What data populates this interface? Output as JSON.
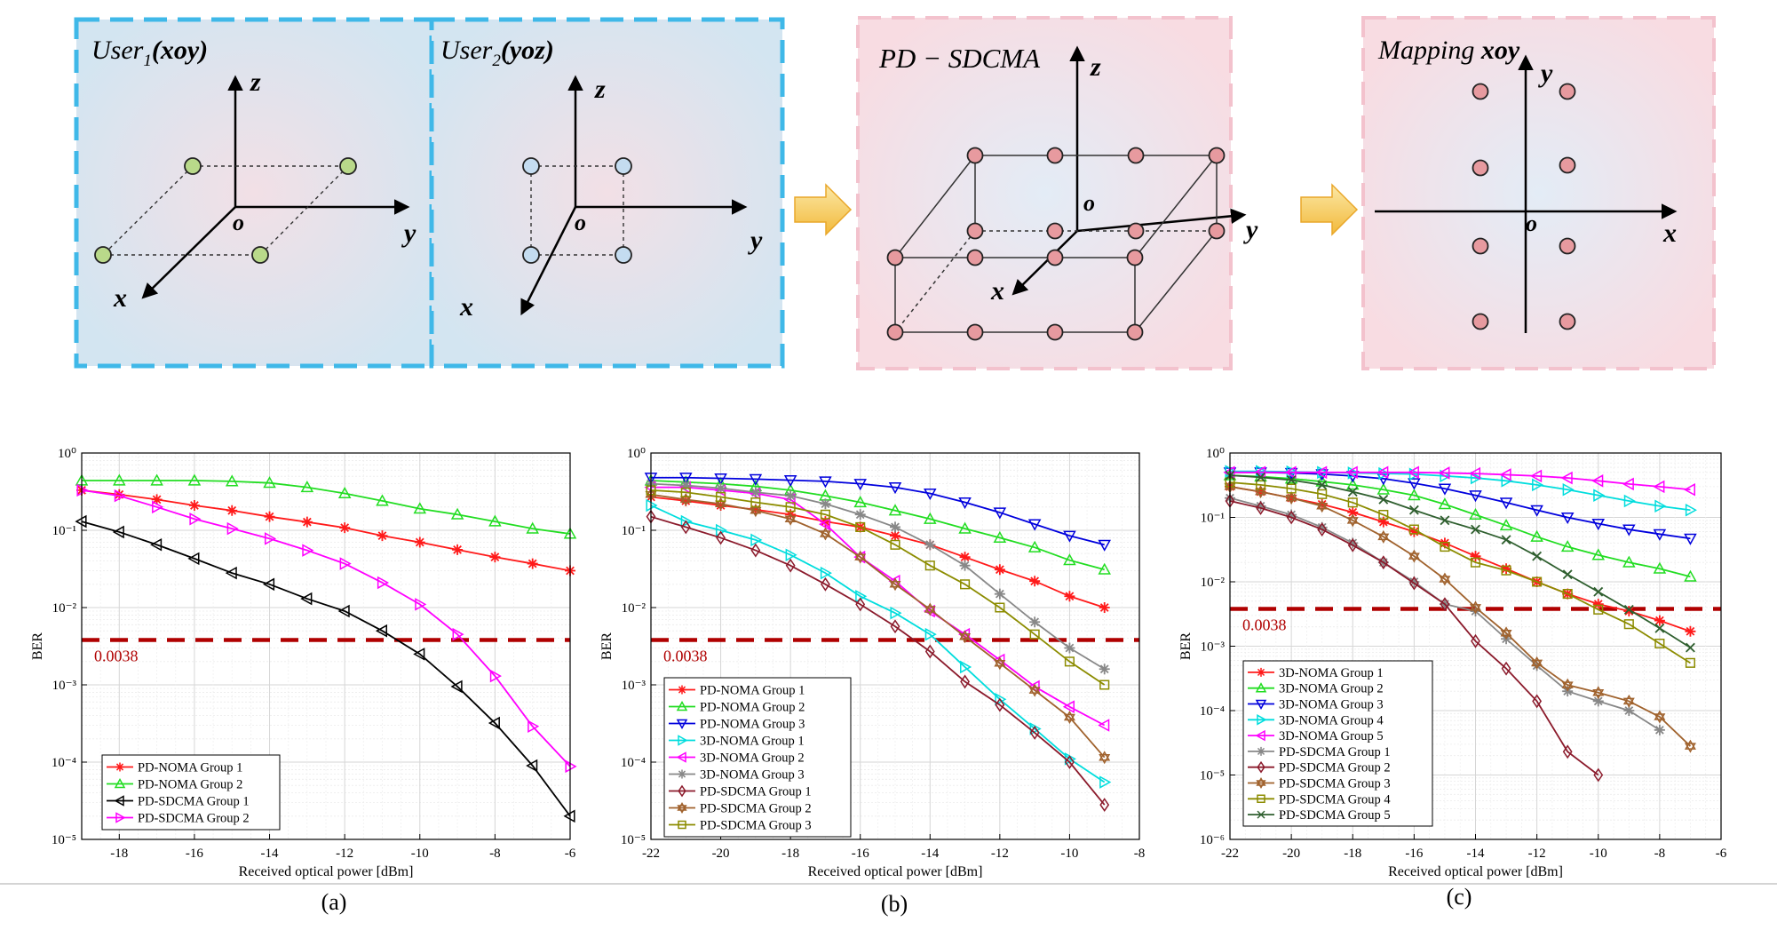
{
  "diagram": {
    "user1_label": "User",
    "user1_sub": "1",
    "user1_plane": "(xoy)",
    "user2_label": "User",
    "user2_sub": "2",
    "user2_plane": "(yoz)",
    "pdsdcma_label": "PD − SDCMA",
    "mapping_label": "Mapping ",
    "mapping_plane": "xoy",
    "axis_x": "x",
    "axis_y": "y",
    "axis_z": "z",
    "origin": "o",
    "colors": {
      "user_panel": "#d6e6f2",
      "user_border": "#3fb8e8",
      "pink_panel": "#f7dde3",
      "pink_border": "#f3c2cd",
      "green_point": "#b9d98a",
      "blue_point": "#c4dcf0",
      "red_point": "#e79a9f",
      "arrow": "#f4c55a"
    }
  },
  "captions": [
    "(a)",
    "(b)",
    "(c)"
  ],
  "chart_data": [
    {
      "type": "line",
      "panel": "(a)",
      "xlabel": "Received optical power [dBm]",
      "ylabel": "BER",
      "xlim": [
        -19,
        -6
      ],
      "ylim_exp": [
        -5,
        0
      ],
      "log_y": true,
      "grid": true,
      "xticks": [
        -18,
        -16,
        -14,
        -12,
        -10,
        -8,
        -6
      ],
      "threshold": {
        "value": 0.0038,
        "label": "0.0038",
        "color": "#b00000"
      },
      "legend_position": "bottom-left",
      "series": [
        {
          "name": "PD-NOMA Group 1",
          "color": "#ff1a1a",
          "marker": "star",
          "x": [
            -19,
            -18,
            -17,
            -16,
            -15,
            -14,
            -13,
            -12,
            -11,
            -10,
            -9,
            -8,
            -7,
            -6
          ],
          "y": [
            0.33,
            0.29,
            0.25,
            0.21,
            0.18,
            0.15,
            0.128,
            0.108,
            0.085,
            0.07,
            0.056,
            0.045,
            0.037,
            0.03
          ]
        },
        {
          "name": "PD-NOMA Group 2",
          "color": "#22dd22",
          "marker": "tri-up",
          "x": [
            -19,
            -18,
            -17,
            -16,
            -15,
            -14,
            -13,
            -12,
            -11,
            -10,
            -9,
            -8,
            -7,
            -6
          ],
          "y": [
            0.44,
            0.44,
            0.44,
            0.44,
            0.43,
            0.41,
            0.36,
            0.3,
            0.24,
            0.19,
            0.16,
            0.13,
            0.105,
            0.09
          ]
        },
        {
          "name": "PD-SDCMA Group 1",
          "color": "#000000",
          "marker": "tri-left",
          "x": [
            -19,
            -18,
            -17,
            -16,
            -15,
            -14,
            -13,
            -12,
            -11,
            -10,
            -9,
            -8,
            -7,
            -6
          ],
          "y": [
            0.13,
            0.095,
            0.065,
            0.043,
            0.028,
            0.02,
            0.013,
            0.009,
            0.005,
            0.0025,
            0.00095,
            0.00032,
            9e-05,
            2e-05
          ]
        },
        {
          "name": "PD-SDCMA Group 2",
          "color": "#ff00ff",
          "marker": "tri-right",
          "x": [
            -19,
            -18,
            -17,
            -16,
            -15,
            -14,
            -13,
            -12,
            -11,
            -10,
            -9,
            -8,
            -7,
            -6
          ],
          "y": [
            0.33,
            0.28,
            0.2,
            0.14,
            0.105,
            0.078,
            0.055,
            0.037,
            0.021,
            0.011,
            0.0045,
            0.0013,
            0.00029,
            8.8e-05
          ]
        }
      ]
    },
    {
      "type": "line",
      "panel": "(b)",
      "xlabel": "Received optical power [dBm]",
      "ylabel": "BER",
      "xlim": [
        -22,
        -8
      ],
      "ylim_exp": [
        -5,
        0
      ],
      "log_y": true,
      "grid": true,
      "xticks": [
        -22,
        -20,
        -18,
        -16,
        -14,
        -12,
        -10,
        -8
      ],
      "threshold": {
        "value": 0.0038,
        "label": "0.0038",
        "color": "#b00000"
      },
      "legend_position": "bottom-left",
      "series": [
        {
          "name": "PD-NOMA Group 1",
          "color": "#ff1a1a",
          "marker": "star",
          "x": [
            -22,
            -21,
            -20,
            -19,
            -18,
            -17,
            -16,
            -15,
            -14,
            -13,
            -12,
            -11,
            -10,
            -9
          ],
          "y": [
            0.27,
            0.24,
            0.21,
            0.185,
            0.16,
            0.13,
            0.11,
            0.085,
            0.065,
            0.045,
            0.031,
            0.022,
            0.014,
            0.01
          ]
        },
        {
          "name": "PD-NOMA Group 2",
          "color": "#22dd22",
          "marker": "tri-up",
          "x": [
            -22,
            -21,
            -20,
            -19,
            -18,
            -17,
            -16,
            -15,
            -14,
            -13,
            -12,
            -11,
            -10,
            -9
          ],
          "y": [
            0.44,
            0.42,
            0.4,
            0.37,
            0.33,
            0.28,
            0.23,
            0.18,
            0.14,
            0.105,
            0.08,
            0.06,
            0.041,
            0.031
          ]
        },
        {
          "name": "PD-NOMA Group 3",
          "color": "#0000dd",
          "marker": "tri-down",
          "x": [
            -22,
            -21,
            -20,
            -19,
            -18,
            -17,
            -16,
            -15,
            -14,
            -13,
            -12,
            -11,
            -10,
            -9
          ],
          "y": [
            0.48,
            0.48,
            0.47,
            0.46,
            0.445,
            0.43,
            0.4,
            0.36,
            0.3,
            0.23,
            0.17,
            0.12,
            0.085,
            0.065
          ]
        },
        {
          "name": "3D-NOMA Group 1",
          "color": "#00dddd",
          "marker": "tri-right",
          "x": [
            -22,
            -21,
            -20,
            -19,
            -18,
            -17,
            -16,
            -15,
            -14,
            -13,
            -12,
            -11,
            -10,
            -9
          ],
          "y": [
            0.21,
            0.13,
            0.1,
            0.075,
            0.048,
            0.028,
            0.014,
            0.0085,
            0.0045,
            0.0017,
            0.00065,
            0.00027,
            0.00011,
            5.5e-05
          ]
        },
        {
          "name": "3D-NOMA Group 2",
          "color": "#ff00ff",
          "marker": "tri-left",
          "x": [
            -22,
            -21,
            -20,
            -19,
            -18,
            -17,
            -16,
            -15,
            -14,
            -13,
            -12,
            -11,
            -10,
            -9
          ],
          "y": [
            0.36,
            0.36,
            0.33,
            0.3,
            0.25,
            0.12,
            0.045,
            0.022,
            0.009,
            0.0045,
            0.0021,
            0.00095,
            0.00052,
            0.0003
          ]
        },
        {
          "name": "3D-NOMA Group 3",
          "color": "#888888",
          "marker": "star",
          "x": [
            -22,
            -21,
            -20,
            -19,
            -18,
            -17,
            -16,
            -15,
            -14,
            -13,
            -12,
            -11,
            -10,
            -9
          ],
          "y": [
            0.4,
            0.38,
            0.35,
            0.31,
            0.28,
            0.22,
            0.16,
            0.11,
            0.065,
            0.035,
            0.015,
            0.0065,
            0.003,
            0.0016
          ]
        },
        {
          "name": "PD-SDCMA Group 1",
          "color": "#8b1a2b",
          "marker": "diamond",
          "x": [
            -22,
            -21,
            -20,
            -19,
            -18,
            -17,
            -16,
            -15,
            -14,
            -13,
            -12,
            -11,
            -10,
            -9
          ],
          "y": [
            0.15,
            0.11,
            0.08,
            0.055,
            0.035,
            0.02,
            0.011,
            0.0057,
            0.0027,
            0.0011,
            0.00055,
            0.00024,
            0.0001,
            2.8e-05
          ]
        },
        {
          "name": "PD-SDCMA Group 2",
          "color": "#a0622d",
          "marker": "hexagram",
          "x": [
            -22,
            -21,
            -20,
            -19,
            -18,
            -17,
            -16,
            -15,
            -14,
            -13,
            -12,
            -11,
            -10,
            -9
          ],
          "y": [
            0.29,
            0.25,
            0.22,
            0.18,
            0.14,
            0.09,
            0.045,
            0.02,
            0.0095,
            0.0042,
            0.0019,
            0.00085,
            0.00038,
            0.000115
          ]
        },
        {
          "name": "PD-SDCMA Group 3",
          "color": "#8c8c00",
          "marker": "square",
          "x": [
            -22,
            -21,
            -20,
            -19,
            -18,
            -17,
            -16,
            -15,
            -14,
            -13,
            -12,
            -11,
            -10,
            -9
          ],
          "y": [
            0.33,
            0.31,
            0.27,
            0.23,
            0.2,
            0.16,
            0.11,
            0.065,
            0.035,
            0.02,
            0.01,
            0.0045,
            0.002,
            0.001
          ]
        }
      ]
    },
    {
      "type": "line",
      "panel": "(c)",
      "xlabel": "Received optical power [dBm]",
      "ylabel": "BER",
      "xlim": [
        -22,
        -6
      ],
      "ylim_exp": [
        -6,
        0
      ],
      "log_y": true,
      "grid": true,
      "xticks": [
        -22,
        -20,
        -18,
        -16,
        -14,
        -12,
        -10,
        -8,
        -6
      ],
      "threshold": {
        "value": 0.0038,
        "label": "0.0038",
        "color": "#b00000"
      },
      "legend_position": "bottom-left",
      "series": [
        {
          "name": "3D-NOMA Group 1",
          "color": "#ff1a1a",
          "marker": "star",
          "x": [
            -22,
            -21,
            -20,
            -19,
            -18,
            -17,
            -16,
            -15,
            -14,
            -13,
            -12,
            -11,
            -10,
            -9,
            -8,
            -7
          ],
          "y": [
            0.3,
            0.25,
            0.2,
            0.16,
            0.12,
            0.085,
            0.06,
            0.04,
            0.025,
            0.016,
            0.01,
            0.0065,
            0.0045,
            0.0035,
            0.0025,
            0.0017
          ]
        },
        {
          "name": "3D-NOMA Group 2",
          "color": "#22dd22",
          "marker": "tri-up",
          "x": [
            -22,
            -21,
            -20,
            -19,
            -18,
            -17,
            -16,
            -15,
            -14,
            -13,
            -12,
            -11,
            -10,
            -9,
            -8,
            -7
          ],
          "y": [
            0.45,
            0.43,
            0.4,
            0.36,
            0.32,
            0.27,
            0.22,
            0.16,
            0.11,
            0.075,
            0.05,
            0.035,
            0.026,
            0.02,
            0.016,
            0.012
          ]
        },
        {
          "name": "3D-NOMA Group 3",
          "color": "#0000dd",
          "marker": "tri-down",
          "x": [
            -22,
            -21,
            -20,
            -19,
            -18,
            -17,
            -16,
            -15,
            -14,
            -13,
            -12,
            -11,
            -10,
            -9,
            -8,
            -7
          ],
          "y": [
            0.5,
            0.5,
            0.49,
            0.47,
            0.44,
            0.4,
            0.34,
            0.28,
            0.22,
            0.17,
            0.13,
            0.1,
            0.08,
            0.065,
            0.055,
            0.047
          ]
        },
        {
          "name": "3D-NOMA Group 4",
          "color": "#00dddd",
          "marker": "tri-right",
          "x": [
            -22,
            -21,
            -20,
            -19,
            -18,
            -17,
            -16,
            -15,
            -14,
            -13,
            -12,
            -11,
            -10,
            -9,
            -8,
            -7
          ],
          "y": [
            0.52,
            0.52,
            0.51,
            0.5,
            0.49,
            0.48,
            0.47,
            0.44,
            0.41,
            0.37,
            0.32,
            0.27,
            0.22,
            0.18,
            0.15,
            0.13
          ]
        },
        {
          "name": "3D-NOMA Group 5",
          "color": "#ff00ff",
          "marker": "tri-left",
          "x": [
            -22,
            -21,
            -20,
            -19,
            -18,
            -17,
            -16,
            -15,
            -14,
            -13,
            -12,
            -11,
            -10,
            -9,
            -8,
            -7
          ],
          "y": [
            0.5,
            0.5,
            0.5,
            0.5,
            0.5,
            0.5,
            0.5,
            0.49,
            0.48,
            0.46,
            0.44,
            0.41,
            0.37,
            0.33,
            0.3,
            0.27
          ]
        },
        {
          "name": "PD-SDCMA Group 1",
          "color": "#888888",
          "marker": "star",
          "x": [
            -22,
            -21,
            -20,
            -19,
            -18,
            -17,
            -16,
            -15,
            -14,
            -13,
            -12,
            -11,
            -10,
            -9,
            -8
          ],
          "y": [
            0.2,
            0.15,
            0.11,
            0.07,
            0.04,
            0.02,
            0.01,
            0.0045,
            0.0035,
            0.0013,
            0.0005,
            0.0002,
            0.00014,
            0.0001,
            5e-05
          ]
        },
        {
          "name": "PD-SDCMA Group 2",
          "color": "#8b1a2b",
          "marker": "diamond",
          "x": [
            -22,
            -21,
            -20,
            -19,
            -18,
            -17,
            -16,
            -15,
            -14,
            -13,
            -12,
            -11,
            -10
          ],
          "y": [
            0.18,
            0.14,
            0.1,
            0.065,
            0.037,
            0.02,
            0.0095,
            0.0045,
            0.0012,
            0.00045,
            0.00014,
            2.3e-05,
            1e-05
          ]
        },
        {
          "name": "PD-SDCMA Group 3",
          "color": "#a0622d",
          "marker": "hexagram",
          "x": [
            -22,
            -21,
            -20,
            -19,
            -18,
            -17,
            -16,
            -15,
            -14,
            -13,
            -12,
            -11,
            -10,
            -9,
            -8,
            -7
          ],
          "y": [
            0.3,
            0.25,
            0.2,
            0.15,
            0.09,
            0.05,
            0.025,
            0.011,
            0.004,
            0.0016,
            0.00055,
            0.00025,
            0.00019,
            0.00014,
            8e-05,
            2.8e-05
          ]
        },
        {
          "name": "PD-SDCMA Group 4",
          "color": "#8c8c00",
          "marker": "square",
          "x": [
            -22,
            -21,
            -20,
            -19,
            -18,
            -17,
            -16,
            -15,
            -14,
            -13,
            -12,
            -11,
            -10,
            -9,
            -8,
            -7
          ],
          "y": [
            0.35,
            0.32,
            0.28,
            0.23,
            0.17,
            0.11,
            0.065,
            0.035,
            0.02,
            0.015,
            0.01,
            0.0065,
            0.0037,
            0.0022,
            0.0011,
            0.00055
          ]
        },
        {
          "name": "PD-SDCMA Group 5",
          "color": "#2f5f2f",
          "marker": "x",
          "x": [
            -22,
            -21,
            -20,
            -19,
            -18,
            -17,
            -16,
            -15,
            -14,
            -13,
            -12,
            -11,
            -10,
            -9,
            -8,
            -7
          ],
          "y": [
            0.45,
            0.42,
            0.38,
            0.32,
            0.25,
            0.19,
            0.13,
            0.09,
            0.065,
            0.045,
            0.025,
            0.013,
            0.007,
            0.0037,
            0.0019,
            0.00095
          ]
        }
      ]
    }
  ]
}
